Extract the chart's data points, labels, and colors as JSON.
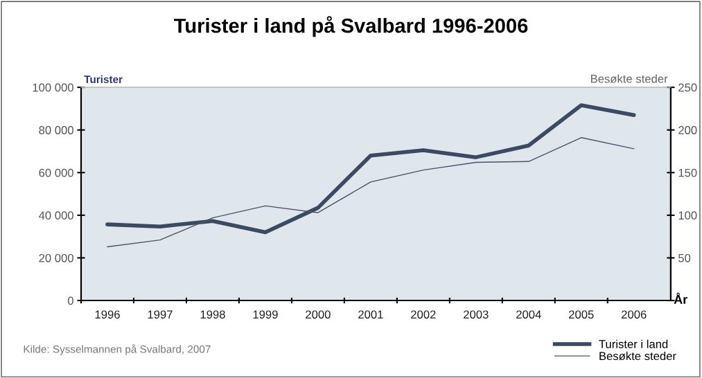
{
  "chart_data": {
    "type": "line",
    "title": "Turister i land på Svalbard 1996-2006",
    "ylabel": "Turister",
    "y2label": "Besøkte steder",
    "xlabel": "År",
    "annotations": [
      "Kilde: Sysselmannen på Svalbard, 2007"
    ],
    "categories": [
      "1996",
      "1997",
      "1998",
      "1999",
      "2000",
      "2001",
      "2002",
      "2003",
      "2004",
      "2005",
      "2006"
    ],
    "series": [
      {
        "name": "Turister i land",
        "color": "#3b4a63",
        "values": [
          35700,
          34700,
          37300,
          32000,
          43500,
          68000,
          70500,
          67200,
          72700,
          91600,
          87000
        ]
      },
      {
        "name": "Besøkte steder",
        "color": "#4a5468",
        "axis": "y2",
        "values": [
          63,
          71,
          97,
          111,
          103,
          139,
          153,
          162,
          163,
          191,
          178
        ]
      }
    ],
    "ylim": [
      0,
      100000
    ],
    "yticks": [
      0,
      {
        "value": 20000,
        "label": "20 000"
      },
      {
        "value": 40000,
        "label": "40 000"
      },
      {
        "value": 60000,
        "label": "60 000"
      },
      {
        "value": 80000,
        "label": "80 000"
      },
      {
        "value": 100000,
        "label": "100 000"
      }
    ],
    "y2lim": [
      0,
      250
    ],
    "y2ticks": [
      {
        "value": 0,
        "label": null
      },
      50,
      100,
      150,
      200,
      250
    ],
    "grid": false,
    "legend": "bottom right",
    "marker": "none",
    "line_style": "solid"
  }
}
